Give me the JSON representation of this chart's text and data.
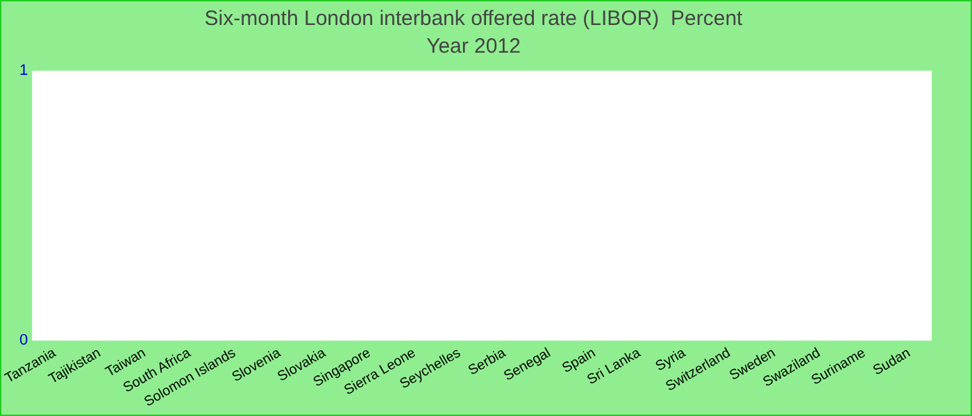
{
  "chart_data": {
    "type": "bar",
    "title": "Six-month London interbank offered rate (LIBOR)  Percent",
    "subtitle": "Year 2012",
    "categories": [
      "Tanzania",
      "Tajikistan",
      "Taiwan",
      "South Africa",
      "Solomon Islands",
      "Slovenia",
      "Slovakia",
      "Singapore",
      "Sierra Leone",
      "Seychelles",
      "Serbia",
      "Senegal",
      "Spain",
      "Sri Lanka",
      "Syria",
      "Switzerland",
      "Sweden",
      "Swaziland",
      "Suriname",
      "Sudan"
    ],
    "values": [
      null,
      null,
      null,
      null,
      null,
      null,
      null,
      null,
      null,
      null,
      null,
      null,
      null,
      null,
      null,
      null,
      null,
      null,
      null,
      null
    ],
    "ylim": [
      0,
      1
    ],
    "yticks": [
      0,
      1
    ],
    "grid": false,
    "legend": false
  }
}
